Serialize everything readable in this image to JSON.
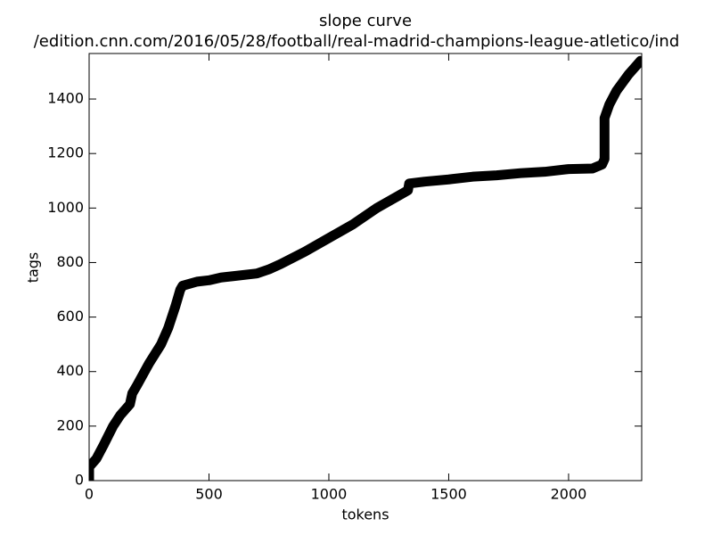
{
  "chart_data": {
    "type": "line",
    "title": "slope curve",
    "subtitle": "/edition.cnn.com/2016/05/28/football/real-madrid-champions-league-atletico/ind",
    "x_label": "tokens",
    "y_label": "tags",
    "x": [
      0,
      0,
      30,
      60,
      100,
      130,
      170,
      180,
      200,
      250,
      300,
      330,
      360,
      380,
      390,
      450,
      500,
      550,
      600,
      700,
      750,
      800,
      900,
      1000,
      1100,
      1200,
      1300,
      1330,
      1335,
      1400,
      1500,
      1600,
      1700,
      1800,
      1900,
      2000,
      2100,
      2140,
      2150,
      2150,
      2170,
      2200,
      2250,
      2280,
      2300
    ],
    "series": [
      {
        "color": "#000000",
        "values": [
          0,
          50,
          80,
          130,
          200,
          240,
          280,
          320,
          350,
          430,
          500,
          560,
          640,
          700,
          715,
          730,
          735,
          745,
          750,
          760,
          775,
          795,
          840,
          890,
          940,
          1000,
          1050,
          1065,
          1090,
          1097,
          1105,
          1115,
          1120,
          1128,
          1133,
          1143,
          1145,
          1160,
          1180,
          1330,
          1380,
          1430,
          1490,
          1520,
          1540
        ]
      }
    ],
    "xlim": [
      0,
      2305
    ],
    "ylim": [
      0,
      1567
    ],
    "xticks": [
      0,
      500,
      1000,
      1500,
      2000
    ],
    "yticks": [
      0,
      200,
      400,
      600,
      800,
      1000,
      1200,
      1400
    ],
    "grid": false
  }
}
